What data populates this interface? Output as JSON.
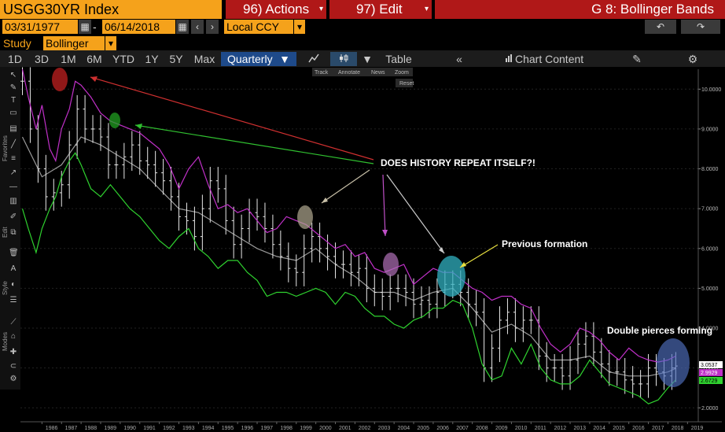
{
  "header": {
    "ticker": "USGG30YR Index",
    "actions_label": "96) Actions",
    "edit_label": "97) Edit",
    "window_title": "G 8: Bollinger Bands"
  },
  "range": {
    "start": "03/31/1977",
    "separator": "-",
    "end": "06/14/2018",
    "currency": "Local CCY",
    "study_label": "Study",
    "study_value": "Bollinger"
  },
  "periods": [
    "1D",
    "3D",
    "1M",
    "6M",
    "YTD",
    "1Y",
    "5Y",
    "Max"
  ],
  "toolbar": {
    "frequency": "Quarterly",
    "table_label": "Table",
    "collapse_glyph": "«",
    "chart_content_label": "Chart Content"
  },
  "mini_toolbar": {
    "track": "Track",
    "annotate": "Annotate",
    "news": "News",
    "zoom": "Zoom",
    "reset": "Reset"
  },
  "sidebar_sections": {
    "favorites": "Favorites",
    "edit": "Edit",
    "style": "Style",
    "modes": "Modes"
  },
  "annotations": {
    "main": "DOES HISTORY REPEAT ITSELF?!",
    "previous": "Previous formation",
    "double": "Double pierces forming"
  },
  "last_values": [
    "3.0537",
    "2.9929",
    "2.6729"
  ],
  "colors": {
    "upper_band": "#c030c8",
    "lower_band": "#2fd22f",
    "price": "#ffffff",
    "moving_avg": "#9a9a9a",
    "accent_orange": "#f5a21b",
    "accent_red": "#b01818"
  },
  "chart_data": {
    "type": "line",
    "title": "",
    "x_ticks": [
      "1986",
      "1987",
      "1988",
      "1989",
      "1990",
      "1991",
      "1992",
      "1993",
      "1994",
      "1995",
      "1996",
      "1997",
      "1998",
      "1999",
      "2000",
      "2001",
      "2002",
      "2003",
      "2004",
      "2005",
      "2006",
      "2007",
      "2008",
      "2009",
      "2010",
      "2011",
      "2012",
      "2013",
      "2014",
      "2015",
      "2016",
      "2017",
      "2018",
      "2019"
    ],
    "y_ticks": [
      "10.0000",
      "9.0000",
      "8.0000",
      "7.0000",
      "6.0000",
      "5.0000",
      "4.0000",
      "3.0000",
      "2.0000"
    ],
    "ylim": [
      1.65,
      10.5
    ],
    "series": [
      {
        "name": "upper",
        "x": [
          1985.0,
          1985.3,
          1985.7,
          1986.0,
          1986.4,
          1986.7,
          1987.0,
          1987.4,
          1987.7,
          1988.0,
          1988.5,
          1989.0,
          1989.5,
          1990.0,
          1990.5,
          1991.0,
          1991.5,
          1992.0,
          1992.5,
          1993.0,
          1993.5,
          1994.0,
          1994.5,
          1995.0,
          1995.5,
          1996.0,
          1996.5,
          1997.0,
          1997.5,
          1998.0,
          1998.5,
          1999.0,
          1999.5,
          2000.0,
          2000.5,
          2001.0,
          2001.5,
          2002.0,
          2002.5,
          2003.0,
          2003.5,
          2004.0,
          2004.5,
          2005.0,
          2005.5,
          2006.0,
          2006.5,
          2007.0,
          2007.5,
          2008.0,
          2008.5,
          2009.0,
          2009.5,
          2010.0,
          2010.5,
          2011.0,
          2011.5,
          2012.0,
          2012.5,
          2013.0,
          2013.5,
          2014.0,
          2014.5,
          2015.0,
          2015.5,
          2016.0,
          2016.5,
          2017.0,
          2017.5,
          2018.0,
          2018.4
        ],
        "y": [
          10.5,
          9.8,
          9.0,
          9.6,
          8.5,
          8.2,
          9.0,
          9.5,
          10.2,
          10.1,
          9.8,
          9.4,
          9.2,
          9.1,
          9.0,
          8.9,
          8.7,
          8.5,
          8.1,
          7.5,
          8.0,
          8.3,
          7.6,
          7.0,
          7.1,
          6.9,
          7.0,
          6.7,
          6.4,
          6.5,
          6.8,
          6.7,
          6.6,
          6.4,
          6.2,
          6.0,
          6.1,
          5.8,
          5.9,
          5.5,
          5.4,
          5.5,
          5.6,
          5.1,
          5.3,
          5.5,
          5.4,
          5.4,
          5.2,
          5.0,
          4.9,
          4.7,
          4.8,
          4.8,
          4.6,
          4.5,
          4.0,
          3.6,
          3.4,
          3.6,
          4.0,
          3.9,
          3.7,
          3.4,
          3.2,
          3.5,
          3.3,
          3.2,
          3.15,
          3.2,
          3.3
        ]
      },
      {
        "name": "lower",
        "x": [
          1985.0,
          1985.3,
          1985.7,
          1986.0,
          1986.4,
          1986.7,
          1987.0,
          1987.4,
          1987.7,
          1988.0,
          1988.5,
          1989.0,
          1989.5,
          1990.0,
          1990.5,
          1991.0,
          1991.5,
          1992.0,
          1992.5,
          1993.0,
          1993.5,
          1994.0,
          1994.5,
          1995.0,
          1995.5,
          1996.0,
          1996.5,
          1997.0,
          1997.5,
          1998.0,
          1998.5,
          1999.0,
          1999.5,
          2000.0,
          2000.5,
          2001.0,
          2001.5,
          2002.0,
          2002.5,
          2003.0,
          2003.5,
          2004.0,
          2004.5,
          2005.0,
          2005.5,
          2006.0,
          2006.5,
          2007.0,
          2007.5,
          2008.0,
          2008.5,
          2009.0,
          2009.5,
          2010.0,
          2010.5,
          2011.0,
          2011.5,
          2012.0,
          2012.5,
          2013.0,
          2013.5,
          2014.0,
          2014.5,
          2015.0,
          2015.5,
          2016.0,
          2016.5,
          2017.0,
          2017.5,
          2018.0,
          2018.4
        ],
        "y": [
          7.0,
          6.5,
          5.9,
          6.5,
          7.0,
          7.3,
          7.8,
          8.2,
          8.4,
          8.1,
          7.5,
          7.3,
          7.6,
          7.3,
          7.0,
          6.8,
          6.5,
          6.2,
          6.0,
          6.3,
          6.5,
          6.0,
          5.8,
          5.5,
          5.7,
          5.7,
          5.4,
          5.2,
          4.8,
          4.9,
          4.9,
          4.8,
          4.9,
          5.0,
          4.9,
          4.6,
          4.9,
          4.8,
          4.5,
          4.3,
          4.3,
          4.1,
          4.0,
          4.2,
          4.3,
          4.5,
          4.5,
          4.7,
          4.6,
          4.0,
          3.1,
          2.7,
          2.8,
          3.5,
          3.1,
          3.6,
          3.0,
          2.7,
          2.6,
          2.6,
          2.8,
          3.2,
          2.9,
          2.6,
          2.5,
          2.4,
          2.3,
          2.1,
          2.2,
          2.5,
          2.7
        ]
      },
      {
        "name": "price",
        "x": [
          1985.0,
          1985.4,
          1985.8,
          1986.2,
          1986.6,
          1987.0,
          1987.4,
          1987.8,
          1988.2,
          1988.6,
          1989.0,
          1989.4,
          1989.8,
          1990.2,
          1990.6,
          1991.0,
          1991.4,
          1991.8,
          1992.2,
          1992.6,
          1993.0,
          1993.4,
          1993.8,
          1994.2,
          1994.6,
          1995.0,
          1995.4,
          1995.8,
          1996.2,
          1996.6,
          1997.0,
          1997.4,
          1997.8,
          1998.2,
          1998.6,
          1999.0,
          1999.4,
          1999.8,
          2000.2,
          2000.6,
          2001.0,
          2001.4,
          2001.8,
          2002.2,
          2002.6,
          2003.0,
          2003.4,
          2003.8,
          2004.2,
          2004.6,
          2005.0,
          2005.4,
          2005.8,
          2006.2,
          2006.6,
          2007.0,
          2007.4,
          2007.8,
          2008.2,
          2008.6,
          2009.0,
          2009.4,
          2009.8,
          2010.2,
          2010.6,
          2011.0,
          2011.4,
          2011.8,
          2012.2,
          2012.6,
          2013.0,
          2013.4,
          2013.8,
          2014.2,
          2014.6,
          2015.0,
          2015.4,
          2015.8,
          2016.2,
          2016.6,
          2017.0,
          2017.4,
          2017.8,
          2018.2,
          2018.4
        ],
        "y": [
          10.2,
          9.0,
          8.0,
          7.3,
          7.4,
          7.6,
          8.6,
          9.5,
          9.0,
          9.0,
          8.8,
          8.1,
          8.1,
          8.3,
          8.6,
          8.2,
          8.1,
          7.9,
          7.7,
          7.3,
          6.8,
          6.7,
          6.3,
          7.0,
          7.7,
          7.5,
          6.7,
          6.1,
          6.5,
          6.9,
          6.8,
          6.5,
          6.1,
          5.8,
          5.5,
          5.4,
          6.0,
          6.3,
          6.0,
          5.8,
          5.6,
          5.6,
          5.4,
          5.5,
          5.0,
          4.9,
          4.8,
          5.0,
          5.0,
          4.9,
          4.6,
          4.7,
          4.6,
          4.9,
          5.1,
          5.1,
          4.9,
          4.6,
          4.4,
          3.0,
          3.5,
          4.2,
          4.4,
          4.0,
          4.2,
          4.2,
          3.3,
          3.0,
          3.0,
          2.8,
          3.2,
          3.6,
          3.8,
          3.4,
          3.1,
          2.9,
          2.9,
          2.7,
          2.6,
          2.6,
          3.0,
          2.9,
          2.8,
          3.0,
          3.05
        ]
      },
      {
        "name": "ma",
        "x": [
          1985.0,
          1986.0,
          1987.0,
          1988.0,
          1989.0,
          1990.0,
          1991.0,
          1992.0,
          1993.0,
          1994.0,
          1995.0,
          1996.0,
          1997.0,
          1998.0,
          1999.0,
          2000.0,
          2001.0,
          2002.0,
          2003.0,
          2004.0,
          2005.0,
          2006.0,
          2007.0,
          2008.0,
          2009.0,
          2010.0,
          2011.0,
          2012.0,
          2013.0,
          2014.0,
          2015.0,
          2016.0,
          2017.0,
          2018.0,
          2018.4
        ],
        "y": [
          8.8,
          7.8,
          8.1,
          8.8,
          8.6,
          8.3,
          8.0,
          7.5,
          7.0,
          6.9,
          6.6,
          6.3,
          6.0,
          5.8,
          5.7,
          6.0,
          5.6,
          5.3,
          4.9,
          4.9,
          4.7,
          4.9,
          5.0,
          4.5,
          3.9,
          4.1,
          3.8,
          3.2,
          3.2,
          3.3,
          2.9,
          2.8,
          2.8,
          2.9,
          2.99
        ]
      }
    ]
  }
}
